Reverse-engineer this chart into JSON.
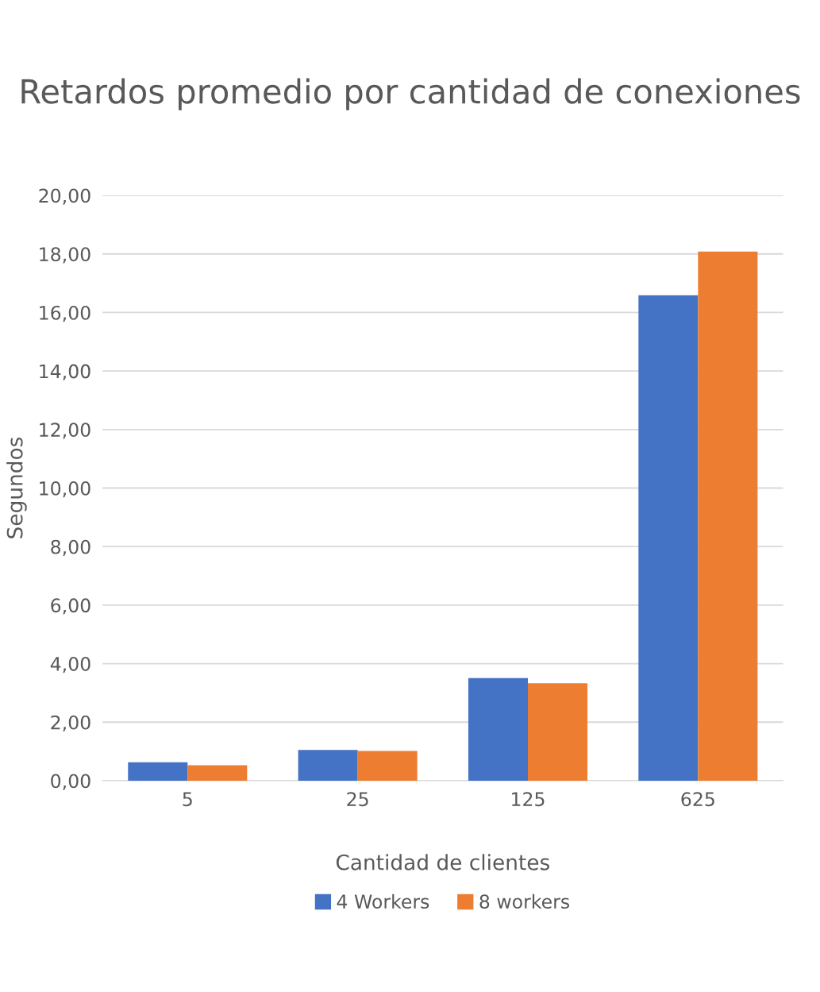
{
  "chart_data": {
    "type": "bar",
    "title": "Retardos promedio por cantidad de conexiones",
    "xlabel": "Cantidad de clientes",
    "ylabel": "Segundos",
    "categories": [
      "5",
      "25",
      "125",
      "625"
    ],
    "series": [
      {
        "name": "4 Workers",
        "color": "#4472c4",
        "values": [
          0.63,
          1.05,
          3.51,
          16.59
        ]
      },
      {
        "name": "8 workers",
        "color": "#ed7d31",
        "values": [
          0.53,
          1.02,
          3.33,
          18.08
        ]
      }
    ],
    "ylim": [
      0,
      20
    ],
    "yticks": [
      {
        "value": 0,
        "label": "0,00"
      },
      {
        "value": 2,
        "label": "2,00"
      },
      {
        "value": 4,
        "label": "4,00"
      },
      {
        "value": 6,
        "label": "6,00"
      },
      {
        "value": 8,
        "label": "8,00"
      },
      {
        "value": 10,
        "label": "10,00"
      },
      {
        "value": 12,
        "label": "12,00"
      },
      {
        "value": 14,
        "label": "14,00"
      },
      {
        "value": 16,
        "label": "16,00"
      },
      {
        "value": 18,
        "label": "18,00"
      },
      {
        "value": 20,
        "label": "20,00"
      }
    ],
    "grid": "y",
    "legend": "bottom"
  }
}
